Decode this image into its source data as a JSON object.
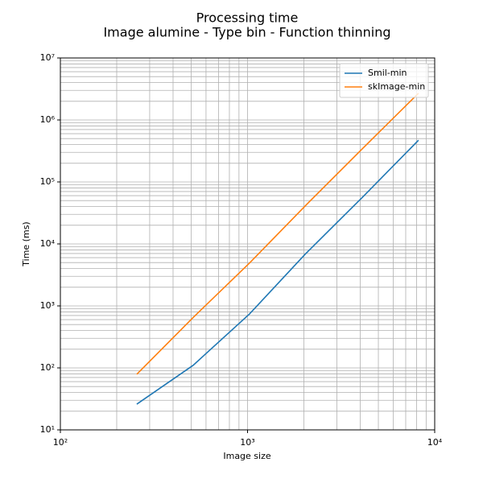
{
  "chart_data": {
    "type": "line",
    "title": "Processing time",
    "subtitle": "Image alumine - Type bin - Function thinning",
    "xlabel": "Image size",
    "ylabel": "Time (ms)",
    "x": [
      256,
      512,
      1024,
      2048,
      4096,
      8192
    ],
    "series": [
      {
        "name": "Smil-min",
        "color": "#1f77b4",
        "values": [
          26,
          110,
          740,
          7000,
          56000,
          470000
        ]
      },
      {
        "name": "skImage-min",
        "color": "#ff7f0e",
        "values": [
          79,
          650,
          4900,
          42000,
          340000,
          2700000
        ]
      }
    ],
    "xscale": "log",
    "yscale": "log",
    "xlim": [
      100,
      10000
    ],
    "ylim": [
      10,
      10000000
    ],
    "xticks": [
      {
        "value": 100,
        "label": "10²"
      },
      {
        "value": 1000,
        "label": "10³"
      },
      {
        "value": 10000,
        "label": "10⁴"
      }
    ],
    "yticks": [
      {
        "value": 10,
        "label": "10¹"
      },
      {
        "value": 100,
        "label": "10²"
      },
      {
        "value": 1000,
        "label": "10³"
      },
      {
        "value": 10000,
        "label": "10⁴"
      },
      {
        "value": 100000,
        "label": "10⁵"
      },
      {
        "value": 1000000,
        "label": "10⁶"
      },
      {
        "value": 10000000,
        "label": "10⁷"
      }
    ],
    "grid": true,
    "minor_grid": true,
    "legend": "upper right"
  }
}
